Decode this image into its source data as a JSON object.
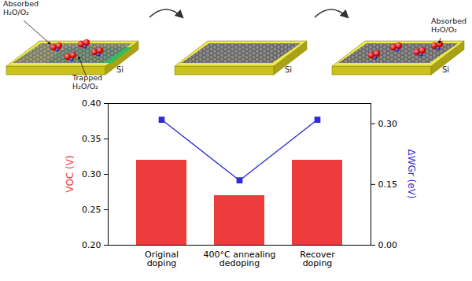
{
  "diagram": {
    "panels": [
      {
        "substrate": "Si",
        "labels": [
          "Absorbed H₂O/O₂",
          "Trapped H₂O/O₂"
        ]
      },
      {
        "substrate": "Si",
        "labels": []
      },
      {
        "substrate": "Si",
        "labels": [
          "Absorbed H₂O/O₂"
        ]
      }
    ]
  },
  "chart_data": {
    "type": "bar",
    "categories": [
      "Original doping",
      "400°C annealing dedoping",
      "Recover doping"
    ],
    "series": [
      {
        "type": "bar",
        "color": "#ee3b3b",
        "values": [
          0.32,
          0.27,
          0.32
        ]
      },
      {
        "type": "line",
        "color": "#2b2bd6",
        "marker": "square",
        "axis": "y2",
        "values": [
          0.31,
          0.16,
          0.31
        ]
      }
    ],
    "ylabel": "VOC (V)",
    "y2label": "ΔWGr (eV)",
    "ylim": [
      0.2,
      0.4
    ],
    "yticks": [
      {
        "value": 0.2,
        "label": "0.20"
      },
      {
        "value": 0.25,
        "label": "0.25"
      },
      {
        "value": 0.3,
        "label": "0.30"
      },
      {
        "value": 0.35,
        "label": "0.35"
      },
      {
        "value": 0.4,
        "label": "0.40"
      }
    ],
    "y2lim": [
      0,
      0.35
    ],
    "y2ticks": [
      {
        "value": 0,
        "label": "0.00"
      },
      {
        "value": 0.15,
        "label": "0.15"
      },
      {
        "value": 0.3,
        "label": "0.30"
      }
    ]
  }
}
